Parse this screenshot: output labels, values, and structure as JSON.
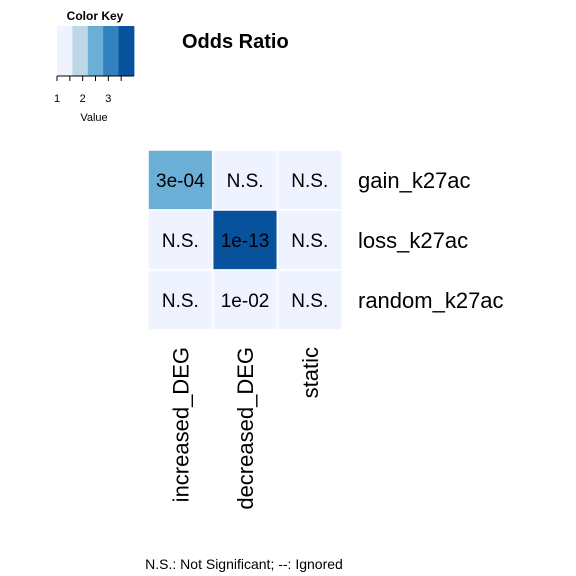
{
  "chart_data": {
    "type": "heatmap",
    "title": "Odds Ratio",
    "rows": [
      "gain_k27ac",
      "loss_k27ac",
      "random_k27ac"
    ],
    "columns": [
      "increased_DEG",
      "decreased_DEG",
      "static"
    ],
    "values": [
      [
        2.6,
        1.0,
        1.0
      ],
      [
        1.0,
        3.8,
        1.0
      ],
      [
        1.0,
        1.5,
        1.0
      ]
    ],
    "cell_labels": [
      [
        "3e-04",
        "N.S.",
        "N.S."
      ],
      [
        "N.S.",
        "1e-13",
        "N.S."
      ],
      [
        "N.S.",
        "1e-02",
        "N.S."
      ]
    ],
    "color_key": {
      "title": "Color Key",
      "xlabel": "Value",
      "range": [
        1,
        4
      ],
      "ticks": [
        "1",
        "2",
        "3"
      ],
      "colors": [
        "#eff3ff",
        "#bdd7e7",
        "#6baed6",
        "#3182bd",
        "#08519c"
      ]
    },
    "footnote": "N.S.: Not Significant; --: Ignored"
  }
}
